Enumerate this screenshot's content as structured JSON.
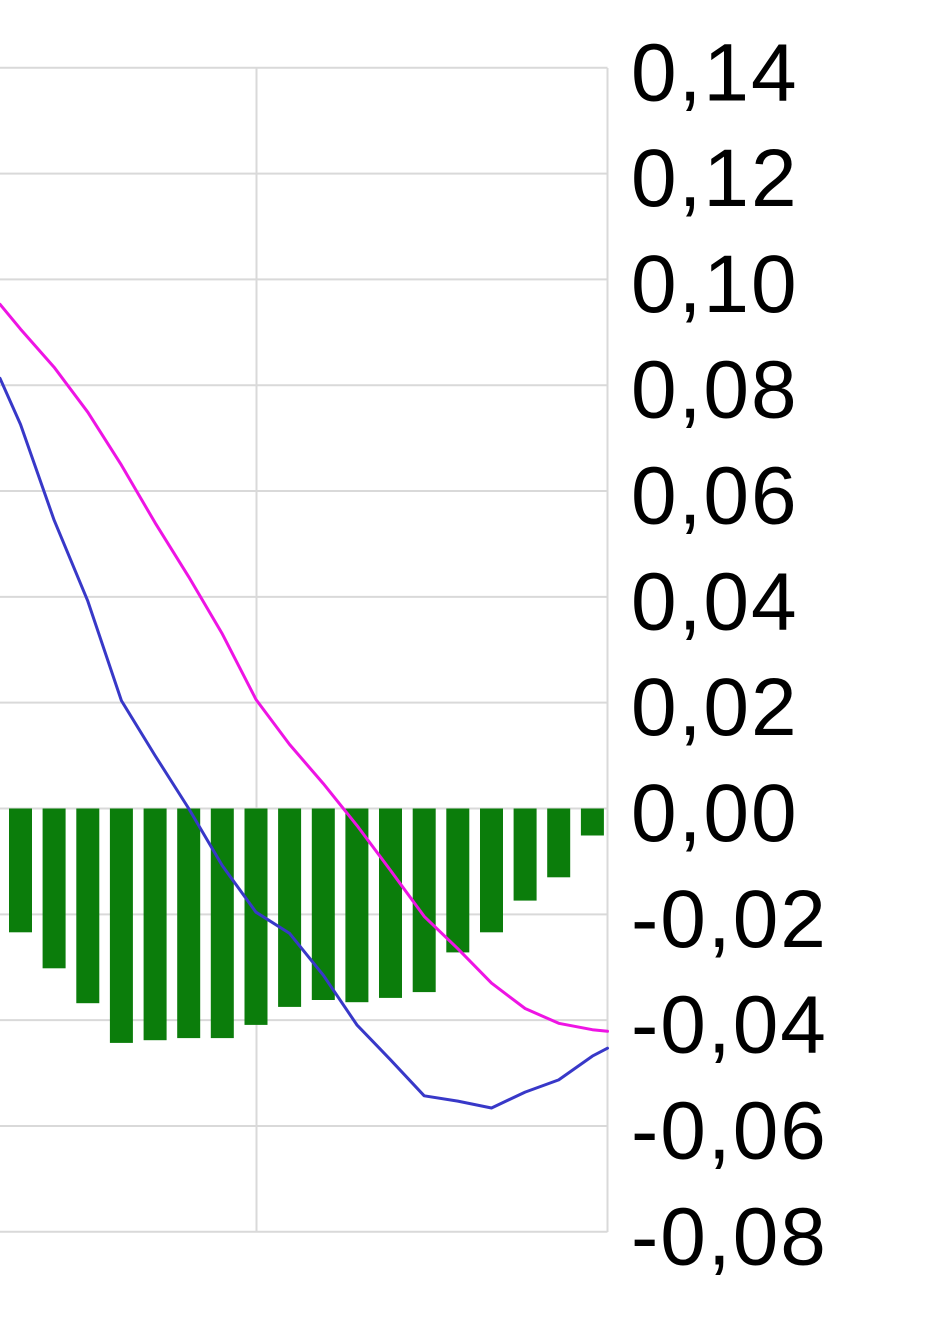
{
  "chart": {
    "description": "cropped combo chart: green histogram bars with blue and magenta lines, right-side value axis, comma decimal separator"
  },
  "colors": {
    "background": "#ffffff",
    "gridline": "#d9d9d9",
    "axis_border": "#d2d2d2",
    "bar_green": "#0b7d0b",
    "line_blue": "#3838c8",
    "line_magenta": "#ee14e4",
    "label_text": "#000000"
  },
  "chart_data": {
    "type": "bar",
    "subtype": "combo-bar-and-lines",
    "grid": "on",
    "legend_position": "none",
    "ylim_visible": [
      -0.08,
      0.145
    ],
    "decimal_separator": ",",
    "y_axis": {
      "side": "right",
      "ticks": [
        {
          "label": "0,14",
          "value": 0.14
        },
        {
          "label": "0,12",
          "value": 0.12
        },
        {
          "label": "0,10",
          "value": 0.1
        },
        {
          "label": "0,08",
          "value": 0.08
        },
        {
          "label": "0,06",
          "value": 0.06
        },
        {
          "label": "0,04",
          "value": 0.04
        },
        {
          "label": "0,02",
          "value": 0.02
        },
        {
          "label": "0,00",
          "value": 0.0
        },
        {
          "label": "-0,02",
          "value": -0.02
        },
        {
          "label": "-0,04",
          "value": -0.04
        },
        {
          "label": "-0,06",
          "value": -0.06
        },
        {
          "label": "-0,08",
          "value": -0.08
        }
      ]
    },
    "series": [
      {
        "name": "green-histogram",
        "type": "bar",
        "color": "#0b7d0b",
        "values": [
          -0.0234,
          -0.0302,
          -0.0368,
          -0.0443,
          -0.0438,
          -0.0434,
          -0.0434,
          -0.0409,
          -0.0375,
          -0.0362,
          -0.0366,
          -0.0358,
          -0.0347,
          -0.0272,
          -0.0234,
          -0.0174,
          -0.013,
          -0.0051
        ]
      },
      {
        "name": "blue-line",
        "type": "line",
        "color": "#3838c8",
        "left_edge_value": 0.0813,
        "right_edge_value": -0.0453,
        "values": [
          0.0726,
          0.0545,
          0.0392,
          0.0204,
          0.01,
          0.0,
          -0.0108,
          -0.0196,
          -0.0236,
          -0.0315,
          -0.0409,
          -0.0475,
          -0.0543,
          -0.0553,
          -0.0566,
          -0.0536,
          -0.0513,
          -0.0468
        ]
      },
      {
        "name": "magenta-line",
        "type": "line",
        "color": "#ee14e4",
        "left_edge_value": 0.0953,
        "right_edge_value": -0.0421,
        "values": [
          0.0906,
          0.0834,
          0.0749,
          0.0649,
          0.054,
          0.0438,
          0.033,
          0.0206,
          0.0121,
          0.0047,
          -0.0032,
          -0.0117,
          -0.0204,
          -0.0265,
          -0.033,
          -0.0378,
          -0.0406,
          -0.0418
        ]
      }
    ]
  }
}
